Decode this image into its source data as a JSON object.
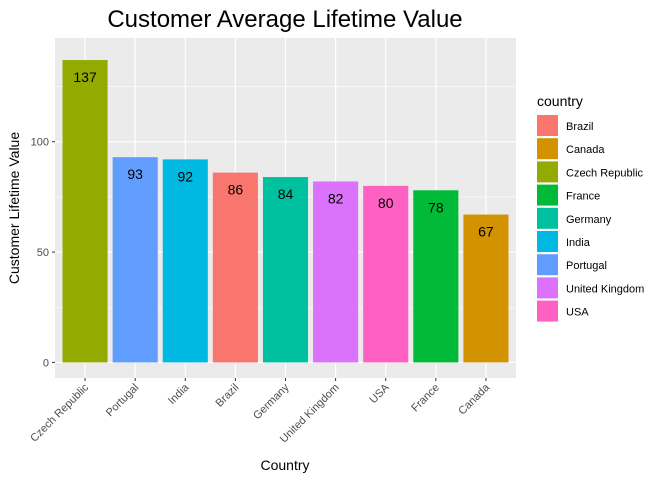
{
  "chart_data": {
    "type": "bar",
    "title": "Customer Average Lifetime Value",
    "xlabel": "Country",
    "ylabel": "Customer Lifetime Value",
    "ylim": [
      0,
      147
    ],
    "yticks": [
      0,
      50,
      100
    ],
    "grid": true,
    "legend_position": "right",
    "legend_title": "country",
    "categories": [
      "Czech Republic",
      "Portugal",
      "India",
      "Brazil",
      "Germany",
      "United Kingdom",
      "USA",
      "France",
      "Canada"
    ],
    "values": [
      137,
      93,
      92,
      86,
      84,
      82,
      80,
      78,
      67
    ],
    "value_labels": [
      "137",
      "93",
      "92",
      "86",
      "84",
      "82",
      "80",
      "78",
      "67"
    ],
    "colors": {
      "Brazil": "#F8766D",
      "Canada": "#D39200",
      "Czech Republic": "#93AA00",
      "France": "#00BA38",
      "Germany": "#00C19F",
      "India": "#00B9E3",
      "Portugal": "#619CFF",
      "United Kingdom": "#DB72FB",
      "USA": "#FF61C3"
    },
    "legend": [
      "Brazil",
      "Canada",
      "Czech Republic",
      "France",
      "Germany",
      "India",
      "Portugal",
      "United Kingdom",
      "USA"
    ]
  }
}
